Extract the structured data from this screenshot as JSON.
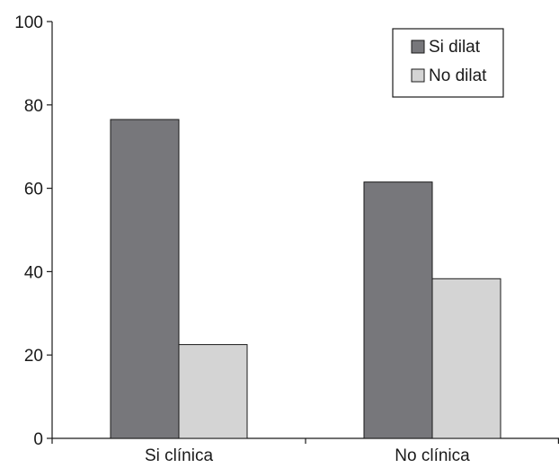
{
  "chart_data": {
    "type": "bar",
    "categories": [
      "Si clínica",
      "No clínica"
    ],
    "series": [
      {
        "name": "Si dilat",
        "values": [
          76.5,
          61.5
        ],
        "color": "#77777b"
      },
      {
        "name": "No dilat",
        "values": [
          22.5,
          38.3
        ],
        "color": "#d4d4d4"
      }
    ],
    "ylim": [
      0,
      100
    ],
    "yticks": [
      0,
      20,
      40,
      60,
      80,
      100
    ],
    "grid": false,
    "legend_position": "top-right",
    "title": "",
    "xlabel": "",
    "ylabel": ""
  }
}
